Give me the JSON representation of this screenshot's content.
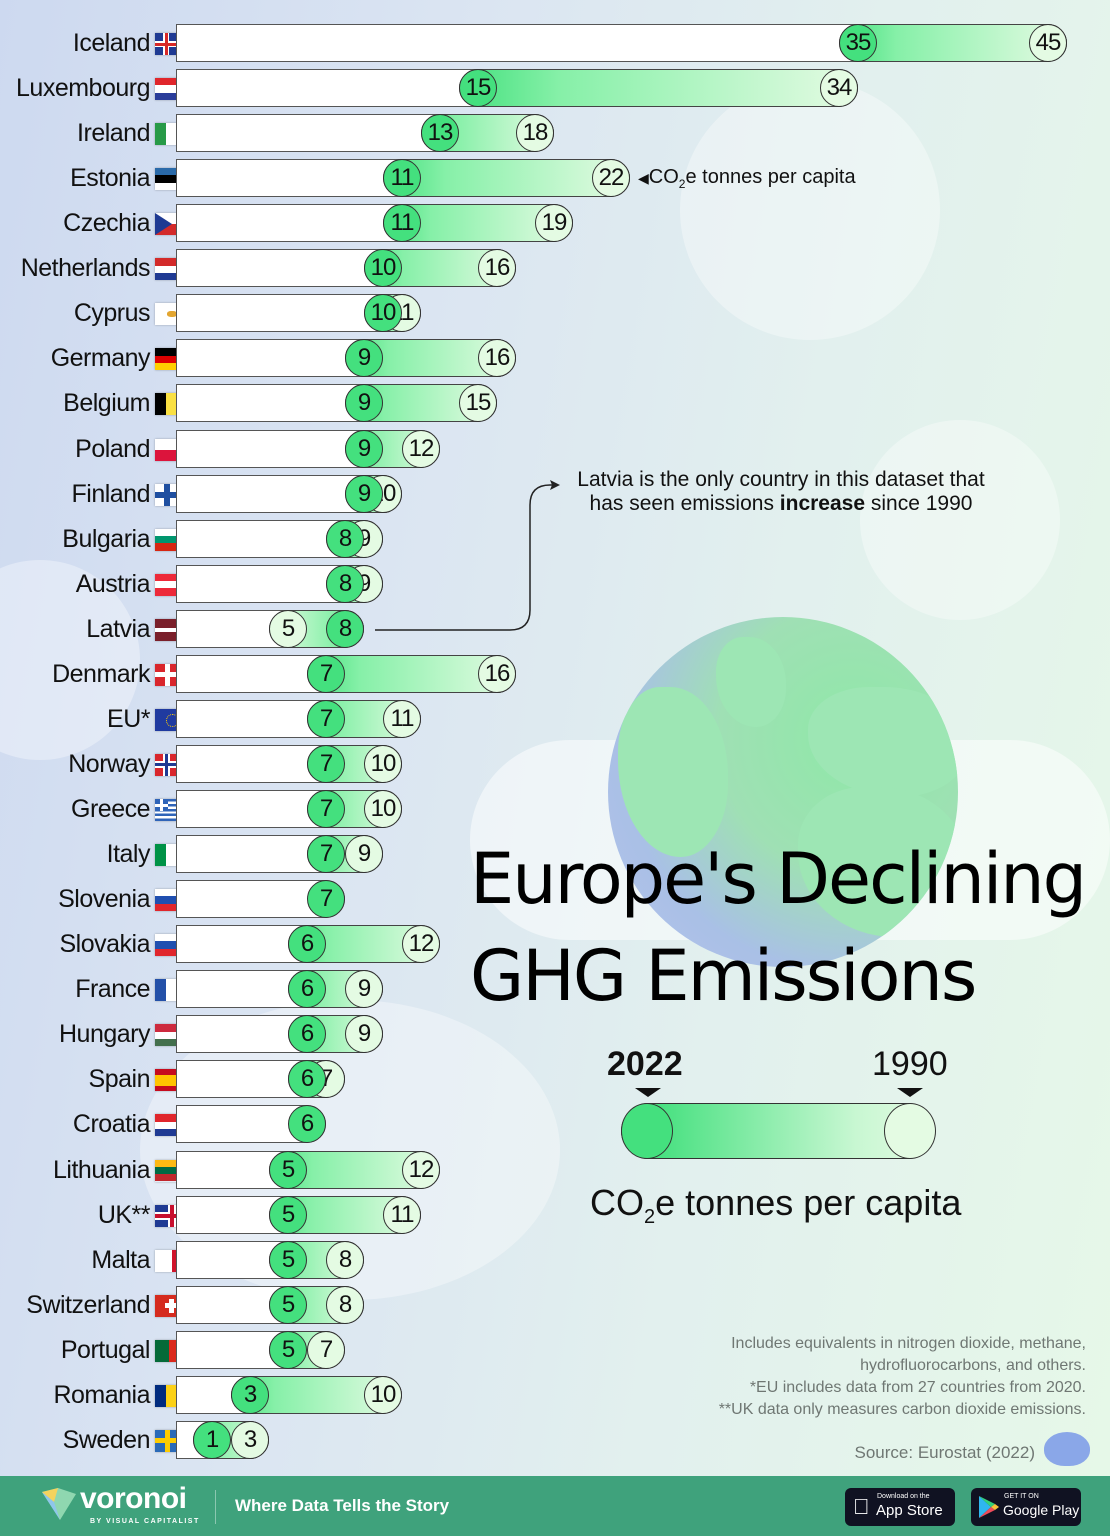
{
  "title": {
    "line1": "Europe's Declining",
    "line2": "GHG Emissions"
  },
  "legend": {
    "year_left": "2022",
    "year_right": "1990",
    "unit_main": "CO",
    "unit_sub": "2",
    "unit_rest": "e tonnes per capita"
  },
  "inline_unit": {
    "main": "CO",
    "sub": "2",
    "rest": "e tonnes per capita"
  },
  "latvia_note": {
    "line1": "Latvia is the only country in this dataset that",
    "line2_pre": "has seen emissions ",
    "line2_bold": "increase",
    "line2_post": " since 1990"
  },
  "notes": [
    "Includes equivalents in nitrogen dioxide, methane,",
    "hydrofluorocarbons, and others.",
    "*EU includes data from 27 countries from 2020.",
    "**UK data only measures carbon dioxide emissions."
  ],
  "source": "Source: Eurostat (2022)",
  "footer": {
    "brand": "voronoi",
    "brand_sub": "BY VISUAL CAPITALIST",
    "tagline": "Where Data Tells the Story",
    "appstore_small": "Download on the",
    "appstore_big": "App Store",
    "play_small": "GET IT ON",
    "play_big": "Google Play"
  },
  "colors": {
    "y2022": "#44e07e",
    "y1990": "#e4fbe3",
    "footer": "#3fa27c"
  },
  "chart_data": {
    "type": "bar",
    "subtype": "dumbbell",
    "title": "Europe's Declining GHG Emissions",
    "unit": "CO2e tonnes per capita",
    "legend": [
      "2022",
      "1990"
    ],
    "categories": [
      "Iceland",
      "Luxembourg",
      "Ireland",
      "Estonia",
      "Czechia",
      "Netherlands",
      "Cyprus",
      "Germany",
      "Belgium",
      "Poland",
      "Finland",
      "Bulgaria",
      "Austria",
      "Latvia",
      "Denmark",
      "EU*",
      "Norway",
      "Greece",
      "Italy",
      "Slovenia",
      "Slovakia",
      "France",
      "Hungary",
      "Spain",
      "Croatia",
      "Lithuania",
      "UK**",
      "Malta",
      "Switzerland",
      "Portugal",
      "Romania",
      "Sweden"
    ],
    "series": [
      {
        "name": "2022",
        "values": [
          35,
          15,
          13,
          11,
          11,
          10,
          10,
          9,
          9,
          9,
          9,
          8,
          8,
          8,
          7,
          7,
          7,
          7,
          7,
          7,
          6,
          6,
          6,
          6,
          6,
          5,
          5,
          5,
          5,
          5,
          3,
          1
        ]
      },
      {
        "name": "1990",
        "values": [
          45,
          34,
          18,
          22,
          19,
          16,
          11,
          16,
          15,
          12,
          10,
          9,
          9,
          5,
          16,
          11,
          10,
          10,
          9,
          7,
          12,
          9,
          9,
          7,
          6,
          12,
          11,
          8,
          8,
          7,
          10,
          3
        ]
      }
    ],
    "annotations": [
      "Latvia is the only country in this dataset that has seen emissions increase since 1990"
    ],
    "source": "Eurostat (2022)"
  },
  "rows": [
    {
      "name": "Iceland",
      "v22": 35,
      "v90": 45,
      "flag": "iceland"
    },
    {
      "name": "Luxembourg",
      "v22": 15,
      "v90": 34,
      "flag": "luxembourg"
    },
    {
      "name": "Ireland",
      "v22": 13,
      "v90": 18,
      "flag": "ireland"
    },
    {
      "name": "Estonia",
      "v22": 11,
      "v90": 22,
      "flag": "estonia"
    },
    {
      "name": "Czechia",
      "v22": 11,
      "v90": 19,
      "flag": "czechia"
    },
    {
      "name": "Netherlands",
      "v22": 10,
      "v90": 16,
      "flag": "netherlands"
    },
    {
      "name": "Cyprus",
      "v22": 10,
      "v90": 11,
      "flag": "cyprus"
    },
    {
      "name": "Germany",
      "v22": 9,
      "v90": 16,
      "flag": "germany"
    },
    {
      "name": "Belgium",
      "v22": 9,
      "v90": 15,
      "flag": "belgium"
    },
    {
      "name": "Poland",
      "v22": 9,
      "v90": 12,
      "flag": "poland"
    },
    {
      "name": "Finland",
      "v22": 9,
      "v90": 10,
      "flag": "finland"
    },
    {
      "name": "Bulgaria",
      "v22": 8,
      "v90": 9,
      "flag": "bulgaria"
    },
    {
      "name": "Austria",
      "v22": 8,
      "v90": 9,
      "flag": "austria"
    },
    {
      "name": "Latvia",
      "v22": 8,
      "v90": 5,
      "flag": "latvia"
    },
    {
      "name": "Denmark",
      "v22": 7,
      "v90": 16,
      "flag": "denmark"
    },
    {
      "name": "EU*",
      "v22": 7,
      "v90": 11,
      "flag": "eu"
    },
    {
      "name": "Norway",
      "v22": 7,
      "v90": 10,
      "flag": "norway"
    },
    {
      "name": "Greece",
      "v22": 7,
      "v90": 10,
      "flag": "greece"
    },
    {
      "name": "Italy",
      "v22": 7,
      "v90": 9,
      "flag": "italy"
    },
    {
      "name": "Slovenia",
      "v22": 7,
      "v90": 7,
      "flag": "slovenia"
    },
    {
      "name": "Slovakia",
      "v22": 6,
      "v90": 12,
      "flag": "slovakia"
    },
    {
      "name": "France",
      "v22": 6,
      "v90": 9,
      "flag": "france"
    },
    {
      "name": "Hungary",
      "v22": 6,
      "v90": 9,
      "flag": "hungary"
    },
    {
      "name": "Spain",
      "v22": 6,
      "v90": 7,
      "flag": "spain"
    },
    {
      "name": "Croatia",
      "v22": 6,
      "v90": 6,
      "flag": "croatia"
    },
    {
      "name": "Lithuania",
      "v22": 5,
      "v90": 12,
      "flag": "lithuania"
    },
    {
      "name": "UK**",
      "v22": 5,
      "v90": 11,
      "flag": "uk"
    },
    {
      "name": "Malta",
      "v22": 5,
      "v90": 8,
      "flag": "malta"
    },
    {
      "name": "Switzerland",
      "v22": 5,
      "v90": 8,
      "flag": "switzerland"
    },
    {
      "name": "Portugal",
      "v22": 5,
      "v90": 7,
      "flag": "portugal"
    },
    {
      "name": "Romania",
      "v22": 3,
      "v90": 10,
      "flag": "romania"
    },
    {
      "name": "Sweden",
      "v22": 1,
      "v90": 3,
      "flag": "sweden"
    }
  ]
}
